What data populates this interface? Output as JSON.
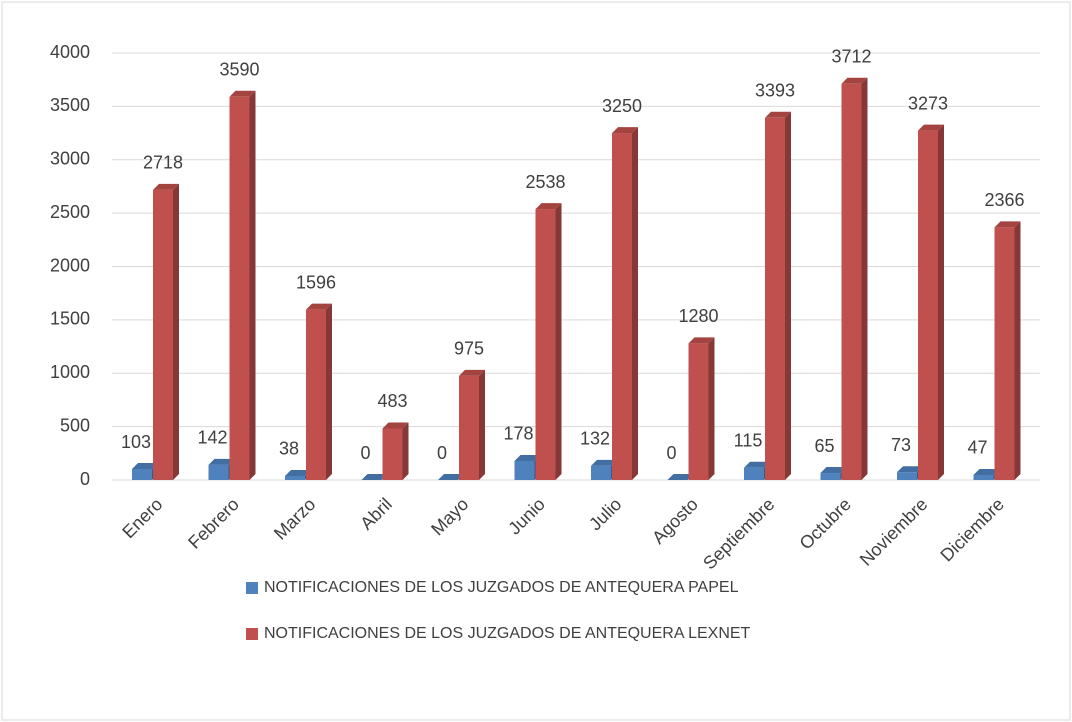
{
  "chart_data": {
    "type": "bar3d",
    "categories": [
      "Enero",
      "Febrero",
      "Marzo",
      "Abril",
      "Mayo",
      "Junio",
      "Julio",
      "Agosto",
      "Septiembre",
      "Octubre",
      "Noviembre",
      "Diciembre"
    ],
    "series": [
      {
        "name": "NOTIFICACIONES DE LOS JUZGADOS DE ANTEQUERA PAPEL",
        "color": "#4f81bd",
        "values": [
          103,
          142,
          38,
          0,
          0,
          178,
          132,
          0,
          115,
          65,
          73,
          47
        ]
      },
      {
        "name": "NOTIFICACIONES DE LOS JUZGADOS DE ANTEQUERA LEXNET",
        "color": "#c0504d",
        "values": [
          2718,
          3590,
          1596,
          483,
          975,
          2538,
          3250,
          1280,
          3393,
          3712,
          3273,
          2366
        ]
      }
    ],
    "ylim": [
      0,
      4000
    ],
    "yticks": [
      0,
      500,
      1000,
      1500,
      2000,
      2500,
      3000,
      3500,
      4000
    ],
    "grid": true
  }
}
